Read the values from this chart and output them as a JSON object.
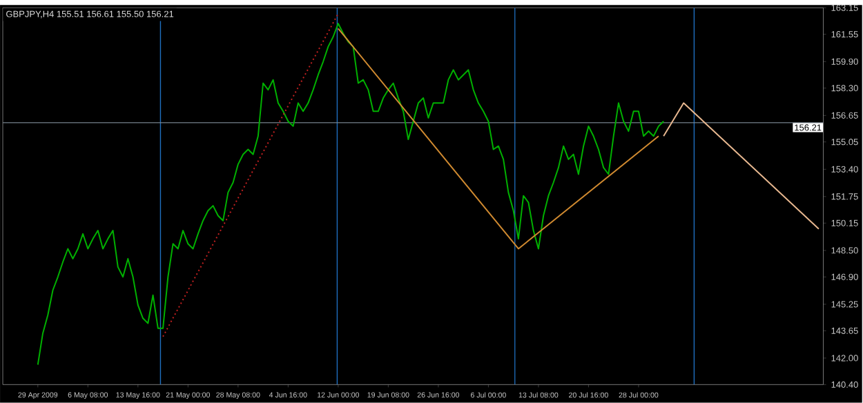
{
  "chart_data": {
    "type": "line",
    "title": "GBPJPY,H4  155.51 156.61 155.50 156.21",
    "categories": [
      "29 Apr 2009",
      null,
      null,
      null,
      null,
      null,
      null,
      null,
      null,
      null,
      "6 May 08:00",
      null,
      null,
      null,
      null,
      null,
      null,
      null,
      null,
      null,
      "13 May 16:00",
      null,
      null,
      null,
      null,
      null,
      null,
      null,
      null,
      null,
      "21 May 00:00",
      null,
      null,
      null,
      null,
      null,
      null,
      null,
      null,
      null,
      "28 May 08:00",
      null,
      null,
      null,
      null,
      null,
      null,
      null,
      null,
      null,
      "4 Jun 16:00",
      null,
      null,
      null,
      null,
      null,
      null,
      null,
      null,
      null,
      "12 Jun 00:00",
      null,
      null,
      null,
      null,
      null,
      null,
      null,
      null,
      null,
      "19 Jun 08:00",
      null,
      null,
      null,
      null,
      null,
      null,
      null,
      null,
      null,
      "26 Jun 16:00",
      null,
      null,
      null,
      null,
      null,
      null,
      null,
      null,
      null,
      "6 Jul 00:00",
      null,
      null,
      null,
      null,
      null,
      null,
      null,
      null,
      null,
      "13 Jul 08:00",
      null,
      null,
      null,
      null,
      null,
      null,
      null,
      null,
      null,
      "20 Jul 16:00",
      null,
      null,
      null,
      null,
      null,
      null,
      null,
      null,
      null,
      "28 Jul 00:00",
      null,
      null,
      null,
      null,
      null,
      null,
      null,
      null,
      null,
      null,
      null,
      null,
      null,
      null,
      null,
      null,
      null,
      null,
      null,
      null,
      null,
      null,
      null,
      null,
      null,
      null,
      null,
      null,
      null,
      null,
      null,
      null,
      null,
      null,
      null,
      null
    ],
    "series": [
      {
        "color": "#00b000",
        "values": [
          141.6,
          143.5,
          144.6,
          146.1,
          146.9,
          147.8,
          148.6,
          148.0,
          148.6,
          149.5,
          148.6,
          149.2,
          149.7,
          148.6,
          149.2,
          149.7,
          147.5,
          146.9,
          148.0,
          146.9,
          145.2,
          144.4,
          144.1,
          145.8,
          143.8,
          143.8,
          146.9,
          148.9,
          148.6,
          149.7,
          148.9,
          148.6,
          149.5,
          150.3,
          150.9,
          151.2,
          150.6,
          150.3,
          152.0,
          152.6,
          153.7,
          154.3,
          154.6,
          154.3,
          155.4,
          158.6,
          158.2,
          158.8,
          157.4,
          156.9,
          156.3,
          156.0,
          157.4,
          156.9,
          157.4,
          158.2,
          159.1,
          159.9,
          160.8,
          161.4,
          162.2,
          161.6,
          161.1,
          160.8,
          158.6,
          158.8,
          158.2,
          156.9,
          156.9,
          157.7,
          158.2,
          158.6,
          157.7,
          156.9,
          155.2,
          156.3,
          157.4,
          157.7,
          156.5,
          157.4,
          157.4,
          157.4,
          158.8,
          159.4,
          158.8,
          159.1,
          159.4,
          158.2,
          157.4,
          156.9,
          156.3,
          154.6,
          154.8,
          154.0,
          152.0,
          150.9,
          149.2,
          151.8,
          151.4,
          149.7,
          148.6,
          150.6,
          151.8,
          152.6,
          153.5,
          154.8,
          154.0,
          154.3,
          153.1,
          154.8,
          156.0,
          155.4,
          154.6,
          153.5,
          153.1,
          155.4,
          157.4,
          156.3,
          155.7,
          156.9,
          156.9,
          155.4,
          155.7,
          155.4,
          156.0,
          156.3,
          null,
          null,
          null,
          null,
          null,
          null,
          null,
          null,
          null,
          null,
          null,
          null,
          null,
          null,
          null,
          null,
          null,
          null,
          null,
          null,
          null,
          null,
          null,
          null,
          null,
          null,
          null,
          null,
          null,
          null,
          null
        ]
      },
      {
        "color": "#c02020",
        "line_style": "dotted",
        "values": [
          null,
          null,
          null,
          null,
          null,
          null,
          null,
          null,
          null,
          null,
          null,
          null,
          null,
          null,
          null,
          null,
          null,
          null,
          null,
          null,
          null,
          null,
          null,
          null,
          null,
          143.3,
          null,
          null,
          null,
          null,
          null,
          null,
          null,
          null,
          null,
          null,
          null,
          null,
          null,
          null,
          null,
          null,
          null,
          null,
          null,
          null,
          null,
          null,
          null,
          null,
          null,
          null,
          null,
          null,
          null,
          null,
          null,
          null,
          null,
          null,
          162.8,
          null,
          null,
          null,
          null,
          null,
          null,
          null,
          null,
          null,
          null,
          null,
          null,
          null,
          null,
          null,
          null,
          null,
          null,
          null,
          null,
          null,
          null,
          null,
          null,
          null,
          null,
          null,
          null,
          null,
          null,
          null,
          null,
          null,
          null,
          null,
          null,
          null,
          null,
          null,
          null,
          null,
          null,
          null,
          null,
          null,
          null,
          null,
          null,
          null,
          null,
          null,
          null,
          null,
          null,
          null,
          null,
          null,
          null,
          null,
          null,
          null,
          null,
          null,
          null,
          null,
          null,
          null,
          null,
          null,
          null,
          null,
          null,
          null,
          null,
          null,
          null,
          null,
          null,
          null,
          null,
          null,
          null,
          null,
          null,
          null,
          null,
          null,
          null,
          null,
          null,
          null,
          null,
          null,
          null,
          null,
          null
        ]
      },
      {
        "color": "#d08a30",
        "values": [
          null,
          null,
          null,
          null,
          null,
          null,
          null,
          null,
          null,
          null,
          null,
          null,
          null,
          null,
          null,
          null,
          null,
          null,
          null,
          null,
          null,
          null,
          null,
          null,
          null,
          null,
          null,
          null,
          null,
          null,
          null,
          null,
          null,
          null,
          null,
          null,
          null,
          null,
          null,
          null,
          null,
          null,
          null,
          null,
          null,
          null,
          null,
          null,
          null,
          null,
          null,
          null,
          null,
          null,
          null,
          null,
          null,
          null,
          null,
          null,
          161.9,
          null,
          null,
          null,
          null,
          null,
          null,
          null,
          null,
          null,
          null,
          null,
          null,
          null,
          null,
          null,
          null,
          null,
          null,
          null,
          null,
          null,
          null,
          null,
          null,
          null,
          null,
          null,
          null,
          null,
          null,
          null,
          null,
          null,
          null,
          null,
          148.6,
          null,
          null,
          null,
          null,
          null,
          null,
          null,
          null,
          null,
          null,
          null,
          null,
          null,
          null,
          null,
          null,
          null,
          null,
          null,
          null,
          null,
          null,
          null,
          null,
          null,
          null,
          null,
          155.4,
          null,
          null,
          null,
          null,
          null,
          null,
          null,
          null,
          null,
          null,
          null,
          null,
          null,
          null,
          null,
          null,
          null,
          null,
          null,
          null,
          null,
          null,
          null,
          null,
          null,
          null,
          null,
          null,
          null,
          null,
          null,
          null
        ]
      },
      {
        "color": "#e8b890",
        "values": [
          null,
          null,
          null,
          null,
          null,
          null,
          null,
          null,
          null,
          null,
          null,
          null,
          null,
          null,
          null,
          null,
          null,
          null,
          null,
          null,
          null,
          null,
          null,
          null,
          null,
          null,
          null,
          null,
          null,
          null,
          null,
          null,
          null,
          null,
          null,
          null,
          null,
          null,
          null,
          null,
          null,
          null,
          null,
          null,
          null,
          null,
          null,
          null,
          null,
          null,
          null,
          null,
          null,
          null,
          null,
          null,
          null,
          null,
          null,
          null,
          null,
          null,
          null,
          null,
          null,
          null,
          null,
          null,
          null,
          null,
          null,
          null,
          null,
          null,
          null,
          null,
          null,
          null,
          null,
          null,
          null,
          null,
          null,
          null,
          null,
          null,
          null,
          null,
          null,
          null,
          null,
          null,
          null,
          null,
          null,
          null,
          null,
          null,
          null,
          null,
          null,
          null,
          null,
          null,
          null,
          null,
          null,
          null,
          null,
          null,
          null,
          null,
          null,
          null,
          null,
          null,
          null,
          null,
          null,
          null,
          null,
          null,
          null,
          null,
          null,
          155.4,
          null,
          null,
          null,
          157.4,
          null,
          null,
          null,
          null,
          null,
          null,
          null,
          null,
          null,
          null,
          null,
          null,
          null,
          null,
          null,
          null,
          null,
          null,
          null,
          null,
          null,
          null,
          null,
          null,
          null,
          null,
          149.8
        ]
      }
    ],
    "ylim": [
      140.4,
      163.15
    ],
    "yticks": [
      {
        "value": 140.4,
        "label": "140.40"
      },
      {
        "value": 142,
        "label": "142.00"
      },
      143.65,
      145.25,
      {
        "value": 146.9,
        "label": "146.90"
      },
      {
        "value": 148.5,
        "label": "148.50"
      },
      150.15,
      151.75,
      {
        "value": 153.4,
        "label": "153.40"
      },
      155.05,
      156.65,
      {
        "value": 158.3,
        "label": "158.30"
      },
      {
        "value": 159.9,
        "label": "159.90"
      },
      161.55,
      163.15
    ],
    "ref_lines": [
      {
        "axis": "y",
        "value": 156.21,
        "label": "156.21",
        "color": "#7f8c99"
      }
    ]
  }
}
